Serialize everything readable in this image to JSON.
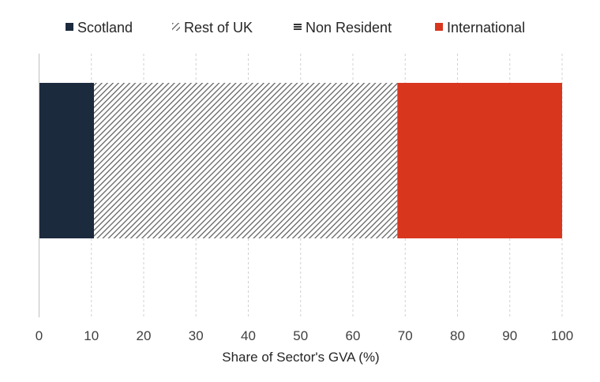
{
  "chart_data": {
    "type": "bar",
    "orientation": "horizontal",
    "stacked": true,
    "categories": [
      ""
    ],
    "series": [
      {
        "name": "Scotland",
        "values": [
          10.5
        ],
        "color": "#1c2a3e",
        "pattern": "solid"
      },
      {
        "name": "Rest of UK",
        "values": [
          58.0
        ],
        "color": "#595959",
        "pattern": "diagonal-hatch"
      },
      {
        "name": "Non Resident",
        "values": [
          0.0
        ],
        "color": "#000000",
        "pattern": "horizontal-lines"
      },
      {
        "name": "International",
        "values": [
          31.5
        ],
        "color": "#d9361e",
        "pattern": "solid"
      }
    ],
    "title": "",
    "xlabel": "Share of Sector's GVA (%)",
    "ylabel": "",
    "xlim": [
      0,
      100
    ],
    "xticks": [
      0,
      10,
      20,
      30,
      40,
      50,
      60,
      70,
      80,
      90,
      100
    ],
    "grid": "vertical dashed",
    "legend_position": "top"
  }
}
